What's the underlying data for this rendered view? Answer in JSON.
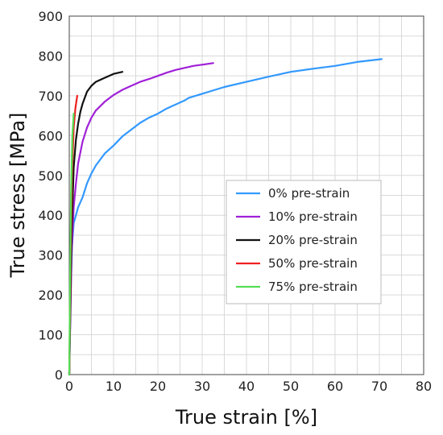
{
  "chart_data": {
    "type": "line",
    "xlabel": "True strain [%]",
    "ylabel": "True stress [MPa]",
    "xlim": [
      0,
      80
    ],
    "ylim": [
      0,
      900
    ],
    "xticks": [
      "0",
      "10",
      "20",
      "30",
      "40",
      "50",
      "60",
      "70",
      "80"
    ],
    "yticks": [
      "0",
      "100",
      "200",
      "300",
      "400",
      "500",
      "600",
      "700",
      "800",
      "900"
    ],
    "grid": true,
    "legend_position": "center-right",
    "series": [
      {
        "name": "0% pre-strain",
        "color": "#3399ff",
        "x": [
          0,
          0.3,
          0.6,
          1,
          1.5,
          2,
          3,
          4,
          5,
          6,
          7,
          8,
          10,
          12,
          14,
          16,
          18,
          20,
          22,
          24,
          26,
          27,
          30,
          35,
          40,
          45,
          50,
          55,
          60,
          65,
          70.5
        ],
        "y": [
          0,
          200,
          320,
          380,
          400,
          420,
          445,
          480,
          505,
          525,
          540,
          555,
          575,
          598,
          615,
          632,
          645,
          655,
          668,
          678,
          688,
          695,
          705,
          722,
          735,
          748,
          760,
          768,
          775,
          785,
          792
        ]
      },
      {
        "name": "10% pre-strain",
        "color": "#a020d8",
        "x": [
          0,
          0.5,
          1,
          1.5,
          2,
          3,
          4,
          5,
          6,
          8,
          10,
          12,
          14,
          16,
          18,
          20,
          22,
          24,
          26,
          28,
          30,
          32.5
        ],
        "y": [
          0,
          300,
          420,
          480,
          530,
          585,
          620,
          645,
          663,
          685,
          702,
          715,
          725,
          735,
          742,
          750,
          758,
          765,
          770,
          775,
          778,
          782
        ]
      },
      {
        "name": "20% pre-strain",
        "color": "#111111",
        "x": [
          0,
          0.5,
          1,
          1.5,
          2,
          2.5,
          3,
          4,
          5,
          6,
          8,
          10,
          12
        ],
        "y": [
          0,
          350,
          520,
          590,
          630,
          660,
          680,
          710,
          725,
          735,
          745,
          755,
          760
        ]
      },
      {
        "name": "50% pre-strain",
        "color": "#ee2020",
        "x": [
          0,
          0.3,
          0.6,
          1,
          1.4,
          1.8
        ],
        "y": [
          0,
          300,
          500,
          620,
          670,
          700
        ]
      },
      {
        "name": "75% pre-strain",
        "color": "#55dd55",
        "x": [
          0,
          0.2,
          0.4,
          0.7,
          1.0
        ],
        "y": [
          0,
          250,
          450,
          600,
          655
        ]
      }
    ]
  }
}
